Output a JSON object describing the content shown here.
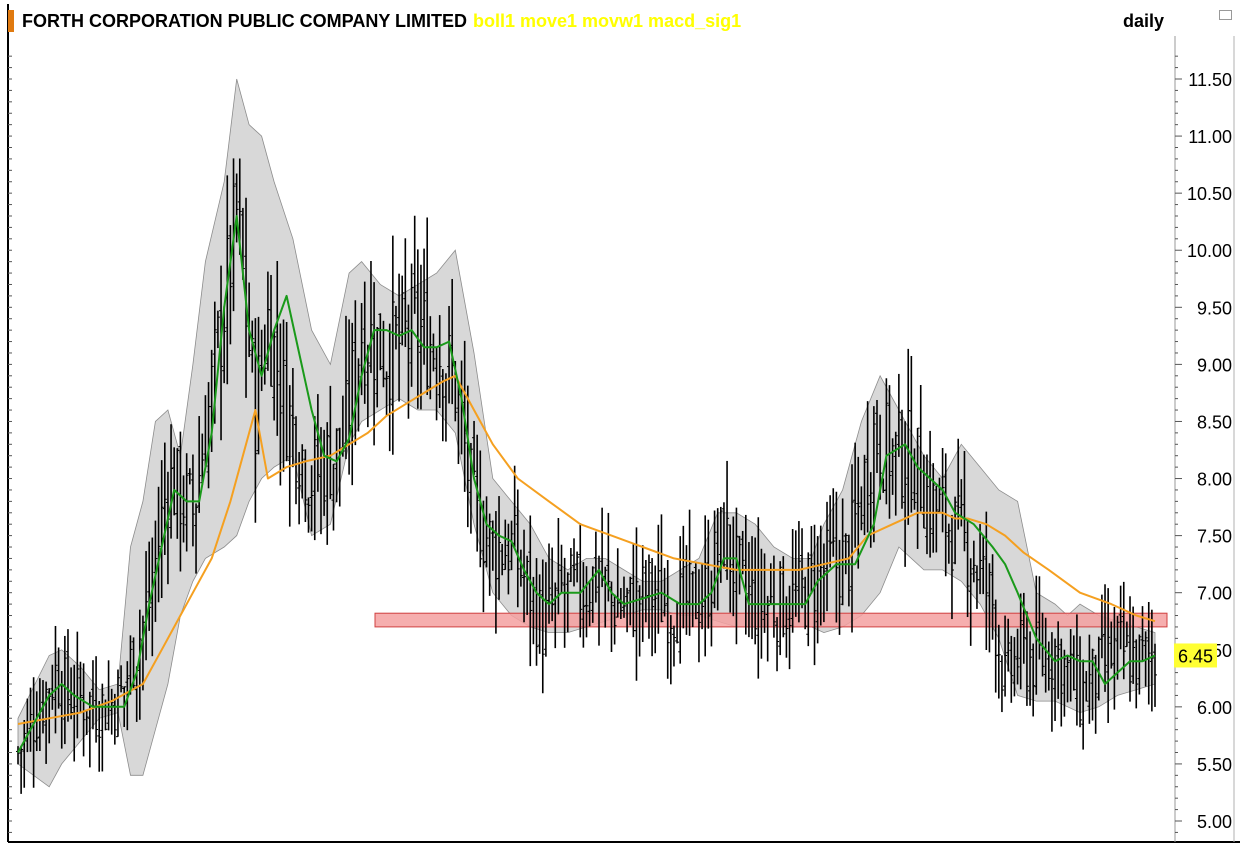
{
  "header": {
    "company": "FORTH CORPORATION PUBLIC COMPANY LIMITED",
    "indicators": "boll1 move1 movw1 macd_sig1",
    "period": "daily"
  },
  "colors": {
    "indicator_text": "#ffff00",
    "bollinger_fill": "#d8d8d8",
    "short_ma": "#1a9a1a",
    "long_ma": "#f5a020",
    "support_zone": "#f4a0a0",
    "price_tag_bg": "#ffff33",
    "accent": "#e07a10"
  },
  "chart_data": {
    "type": "ohlc",
    "ylim": [
      4.85,
      11.75
    ],
    "yticks": [
      "11.50",
      "11.00",
      "10.50",
      "10.00",
      "9.50",
      "9.00",
      "8.50",
      "8.00",
      "7.50",
      "7.00",
      "6.50",
      "6.00",
      "5.50",
      "5.00"
    ],
    "last_price_label": "6.45",
    "support_zone": [
      6.7,
      6.82
    ],
    "close_anchors": [
      [
        0,
        5.6
      ],
      [
        12,
        6.3
      ],
      [
        16,
        6.1
      ],
      [
        28,
        6.0
      ],
      [
        33,
        6.1
      ],
      [
        42,
        6.9
      ],
      [
        48,
        8.0
      ],
      [
        56,
        7.7
      ],
      [
        66,
        9.5
      ],
      [
        70,
        10.3
      ],
      [
        76,
        8.6
      ],
      [
        80,
        9.4
      ],
      [
        86,
        8.6
      ],
      [
        94,
        8.0
      ],
      [
        104,
        8.3
      ],
      [
        110,
        9.3
      ],
      [
        118,
        9.1
      ],
      [
        128,
        9.3
      ],
      [
        136,
        9.1
      ],
      [
        140,
        8.8
      ],
      [
        146,
        7.7
      ],
      [
        152,
        7.4
      ],
      [
        158,
        7.4
      ],
      [
        164,
        7.0
      ],
      [
        168,
        6.7
      ],
      [
        174,
        7.0
      ],
      [
        180,
        7.0
      ],
      [
        186,
        7.2
      ],
      [
        190,
        6.9
      ],
      [
        196,
        6.9
      ],
      [
        202,
        7.0
      ],
      [
        208,
        6.9
      ],
      [
        214,
        6.9
      ],
      [
        220,
        7.0
      ],
      [
        226,
        7.5
      ],
      [
        232,
        7.0
      ],
      [
        238,
        6.9
      ],
      [
        246,
        6.9
      ],
      [
        252,
        7.0
      ],
      [
        258,
        7.2
      ],
      [
        266,
        7.3
      ],
      [
        274,
        8.4
      ],
      [
        280,
        8.2
      ],
      [
        286,
        8.2
      ],
      [
        292,
        7.8
      ],
      [
        298,
        7.6
      ],
      [
        306,
        7.3
      ],
      [
        312,
        6.9
      ],
      [
        316,
        6.2
      ],
      [
        320,
        6.45
      ],
      [
        326,
        6.4
      ],
      [
        332,
        6.5
      ],
      [
        336,
        6.3
      ],
      [
        340,
        6.1
      ],
      [
        346,
        6.3
      ],
      [
        352,
        6.5
      ],
      [
        358,
        6.4
      ],
      [
        364,
        6.45
      ]
    ],
    "bollinger": {
      "x": [
        0,
        10,
        14,
        20,
        26,
        32,
        36,
        40,
        44,
        48,
        52,
        56,
        60,
        66,
        70,
        74,
        78,
        82,
        88,
        94,
        100,
        106,
        110,
        116,
        122,
        128,
        134,
        140,
        146,
        152,
        158,
        164,
        170,
        176,
        182,
        188,
        194,
        200,
        206,
        212,
        218,
        224,
        230,
        236,
        242,
        248,
        254,
        258,
        264,
        270,
        276,
        282,
        286,
        290,
        296,
        302,
        308,
        314,
        320,
        326,
        332,
        336,
        340,
        346,
        352,
        358,
        364
      ],
      "upper": [
        5.9,
        6.45,
        6.5,
        6.35,
        6.15,
        6.2,
        7.4,
        7.8,
        8.5,
        8.6,
        8.2,
        9.0,
        9.9,
        10.6,
        11.5,
        11.1,
        11.0,
        10.6,
        10.1,
        9.3,
        9.0,
        9.8,
        9.9,
        9.7,
        9.6,
        9.7,
        9.8,
        10.0,
        9.1,
        8.0,
        7.8,
        7.6,
        7.3,
        7.2,
        7.3,
        7.3,
        7.2,
        7.1,
        7.1,
        7.2,
        7.3,
        7.7,
        7.7,
        7.6,
        7.4,
        7.3,
        7.3,
        7.6,
        7.9,
        8.5,
        8.9,
        8.6,
        8.4,
        8.2,
        8.0,
        8.3,
        8.1,
        7.9,
        7.8,
        7.0,
        6.9,
        6.8,
        6.9,
        6.8,
        6.75,
        6.7,
        6.65
      ],
      "lower": [
        5.5,
        5.3,
        5.5,
        5.7,
        5.9,
        5.95,
        5.4,
        5.4,
        5.8,
        6.2,
        6.8,
        7.1,
        7.3,
        7.4,
        7.5,
        7.8,
        8.0,
        8.1,
        8.2,
        7.5,
        7.6,
        8.3,
        8.5,
        8.6,
        8.7,
        8.6,
        8.6,
        8.4,
        7.6,
        7.0,
        6.8,
        6.7,
        6.65,
        6.65,
        6.7,
        6.75,
        6.8,
        6.85,
        6.85,
        6.8,
        6.8,
        6.75,
        6.7,
        6.7,
        6.7,
        6.7,
        6.7,
        6.65,
        6.7,
        6.8,
        7.0,
        7.4,
        7.3,
        7.2,
        7.2,
        7.1,
        6.9,
        6.6,
        6.1,
        6.05,
        6.05,
        6.0,
        5.95,
        6.0,
        6.1,
        6.15,
        6.2
      ]
    },
    "short_ma": {
      "x": [
        0,
        6,
        10,
        14,
        18,
        24,
        30,
        34,
        38,
        42,
        46,
        50,
        54,
        58,
        62,
        66,
        70,
        74,
        78,
        82,
        86,
        90,
        94,
        98,
        102,
        106,
        110,
        114,
        118,
        122,
        126,
        130,
        134,
        138,
        142,
        146,
        150,
        154,
        158,
        162,
        166,
        170,
        174,
        180,
        186,
        190,
        194,
        200,
        206,
        212,
        218,
        222,
        226,
        230,
        234,
        240,
        246,
        252,
        256,
        262,
        268,
        274,
        278,
        284,
        288,
        292,
        296,
        300,
        306,
        312,
        316,
        320,
        326,
        332,
        336,
        340,
        344,
        348,
        352,
        356,
        360,
        364
      ],
      "y": [
        5.6,
        5.9,
        6.1,
        6.2,
        6.1,
        6.0,
        6.0,
        6.0,
        6.3,
        6.9,
        7.4,
        7.9,
        7.8,
        7.8,
        8.4,
        9.5,
        10.3,
        9.3,
        8.9,
        9.3,
        9.6,
        9.1,
        8.6,
        8.2,
        8.15,
        8.35,
        8.9,
        9.3,
        9.3,
        9.25,
        9.3,
        9.15,
        9.15,
        9.2,
        8.7,
        8.0,
        7.6,
        7.5,
        7.45,
        7.2,
        7.0,
        6.9,
        7.0,
        7.0,
        7.2,
        7.0,
        6.9,
        6.95,
        7.0,
        6.9,
        6.9,
        7.0,
        7.3,
        7.3,
        6.9,
        6.9,
        6.9,
        6.9,
        7.1,
        7.25,
        7.25,
        7.6,
        8.2,
        8.3,
        8.1,
        8.0,
        7.9,
        7.7,
        7.6,
        7.4,
        7.25,
        7.0,
        6.6,
        6.4,
        6.45,
        6.4,
        6.4,
        6.2,
        6.3,
        6.4,
        6.4,
        6.45
      ]
    },
    "long_ma": {
      "x": [
        0,
        10,
        20,
        30,
        40,
        46,
        52,
        56,
        62,
        68,
        72,
        76,
        80,
        86,
        92,
        100,
        106,
        112,
        118,
        124,
        130,
        136,
        140,
        146,
        152,
        160,
        170,
        180,
        190,
        200,
        210,
        220,
        230,
        240,
        250,
        258,
        266,
        272,
        280,
        288,
        296,
        300,
        304,
        310,
        316,
        322,
        330,
        340,
        350,
        358,
        364
      ],
      "y": [
        5.85,
        5.9,
        5.95,
        6.05,
        6.2,
        6.5,
        6.8,
        7.0,
        7.3,
        7.8,
        8.2,
        8.6,
        8.0,
        8.1,
        8.15,
        8.2,
        8.3,
        8.4,
        8.55,
        8.65,
        8.75,
        8.85,
        8.9,
        8.6,
        8.3,
        8.0,
        7.8,
        7.6,
        7.5,
        7.4,
        7.3,
        7.25,
        7.2,
        7.2,
        7.2,
        7.25,
        7.3,
        7.5,
        7.6,
        7.7,
        7.7,
        7.65,
        7.65,
        7.6,
        7.5,
        7.35,
        7.2,
        7.0,
        6.9,
        6.8,
        6.75
      ]
    }
  }
}
